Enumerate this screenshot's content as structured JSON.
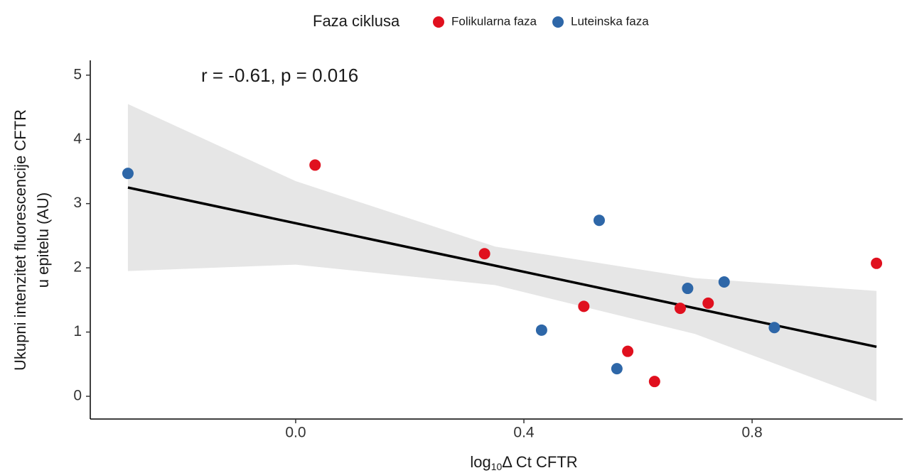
{
  "chart_data": {
    "type": "scatter",
    "annotation": "r = -0.61, p = 0.016",
    "legend_title": "Faza ciklusa",
    "legend_position": "top",
    "x_label": {
      "base": "log",
      "sub": "10",
      "rest": "Δ Ct CFTR"
    },
    "y_label": [
      "Ukupni intenzitet fluorescencije CFTR",
      "u epitelu (AU)"
    ],
    "xlim": [
      -0.36,
      1.064
    ],
    "ylim": [
      -0.354,
      5.23
    ],
    "xticks": [
      {
        "value": 0,
        "label": "0.0"
      },
      0.4,
      0.8
    ],
    "yticks": [
      0,
      1,
      2,
      3,
      4,
      5
    ],
    "series": [
      {
        "name": "Folikularna faza",
        "color": "#e0101e",
        "x": [
          0.034,
          0.331,
          0.505,
          0.582,
          0.629,
          0.674,
          0.723,
          1.018
        ],
        "y": [
          3.6,
          2.22,
          1.4,
          0.7,
          0.23,
          1.37,
          1.45,
          2.07
        ]
      },
      {
        "name": "Luteinska faza",
        "color": "#2e67a8",
        "x": [
          -0.294,
          0.532,
          0.431,
          0.563,
          0.687,
          0.751,
          0.839
        ],
        "y": [
          3.47,
          2.74,
          1.03,
          0.43,
          1.68,
          1.78,
          1.07
        ]
      }
    ],
    "fit_line": {
      "x": [
        -0.294,
        1.018
      ],
      "y": [
        3.25,
        0.77
      ],
      "color": "#000000"
    },
    "confidence_band": {
      "x": [
        -0.294,
        0,
        0.35,
        0.7,
        1.018
      ],
      "upper": [
        4.55,
        3.35,
        2.33,
        1.84,
        1.64
      ],
      "lower": [
        1.95,
        2.05,
        1.73,
        0.97,
        -0.08
      ],
      "color": "#e6e6e6"
    }
  }
}
